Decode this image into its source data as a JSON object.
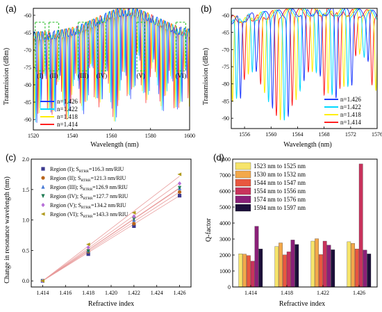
{
  "panels": [
    {
      "label": "(a)",
      "chart_data": {
        "type": "line",
        "xlabel": "Wavelength (nm)",
        "ylabel": "Transmission (dBm)",
        "xlim": [
          1520,
          1600
        ],
        "ylim": [
          -93,
          -58
        ],
        "xticks": [
          1520,
          1540,
          1560,
          1580,
          1600
        ],
        "yticks": [
          -90,
          -85,
          -80,
          -75,
          -70,
          -65,
          -60
        ],
        "legend_position": "bottom-left",
        "series": [
          {
            "name": "n=1.426",
            "color": "#1f3cff"
          },
          {
            "name": "n=1.422",
            "color": "#00d8ff"
          },
          {
            "name": "n=1.418",
            "color": "#ffee00"
          },
          {
            "name": "n=1.414",
            "color": "#ff2020"
          }
        ],
        "regions": [
          {
            "label": "(I)",
            "range": [
              1521,
              1526
            ]
          },
          {
            "label": "(II)",
            "range": [
              1528,
              1533
            ]
          },
          {
            "label": "(III)",
            "range": [
              1543,
              1548
            ]
          },
          {
            "label": "(IV)",
            "range": [
              1553,
              1557
            ]
          },
          {
            "label": "(V)",
            "range": [
              1573,
              1577
            ]
          },
          {
            "label": "(VI)",
            "range": [
              1593,
              1598
            ]
          }
        ]
      }
    },
    {
      "label": "(b)",
      "chart_data": {
        "type": "line",
        "xlabel": "Wavelength (nm)",
        "ylabel": "Transmission (dBm)",
        "xlim": [
          1554,
          1576
        ],
        "ylim": [
          -93,
          -58
        ],
        "xticks": [
          1556,
          1560,
          1564,
          1568,
          1572,
          1576
        ],
        "yticks": [
          -90,
          -85,
          -80,
          -75,
          -70,
          -65,
          -60
        ],
        "legend_position": "bottom-right",
        "series": [
          {
            "name": "n=1.426",
            "color": "#1f3cff"
          },
          {
            "name": "n=1.422",
            "color": "#00d8ff"
          },
          {
            "name": "n=1.418",
            "color": "#ffee00"
          },
          {
            "name": "n=1.414",
            "color": "#ff2020"
          }
        ]
      }
    },
    {
      "label": "(c)",
      "chart_data": {
        "type": "scatter",
        "xlabel": "Refractive index",
        "ylabel": "Change in resonance wavelength (nm)",
        "xlim": [
          1.413,
          1.427
        ],
        "ylim": [
          -0.1,
          2.0
        ],
        "xticks": [
          "1.414",
          "1.416",
          "1.418",
          "1.420",
          "1.422",
          "1.424",
          "1.426"
        ],
        "yticks": [
          "0.0",
          "0.5",
          "1.0",
          "1.5",
          "2.0"
        ],
        "x": [
          1.414,
          1.418,
          1.422,
          1.426
        ],
        "fit_color": "#e89a9a",
        "legend_position": "top-left",
        "series": [
          {
            "name": "Region (I); S",
            "sub": "RTRR",
            "tail": "=116.3 nm/RIU",
            "color": "#3d3a8f",
            "marker": "square",
            "values": [
              0,
              0.44,
              0.9,
              1.4
            ],
            "fit": [
              0,
              1.4
            ]
          },
          {
            "name": "Region (II); S",
            "sub": "RTRR",
            "tail": "=121.3 nm/RIU",
            "color": "#b8651b",
            "marker": "circle",
            "values": [
              0,
              0.48,
              0.94,
              1.46
            ],
            "fit": [
              0,
              1.46
            ]
          },
          {
            "name": "Region (III); S",
            "sub": "RTRR",
            "tail": "=126.9 nm/RIU",
            "color": "#4a7cd6",
            "marker": "triangle-up",
            "values": [
              0,
              0.5,
              1.0,
              1.52
            ],
            "fit": [
              0,
              1.52
            ]
          },
          {
            "name": "Region (IV); S",
            "sub": "RTRR",
            "tail": "=127.7 nm/RIU",
            "color": "#1d7a52",
            "marker": "triangle-down",
            "values": [
              0,
              0.49,
              1.02,
              1.53
            ],
            "fit": [
              0,
              1.53
            ]
          },
          {
            "name": "Region (V); S",
            "sub": "RTRR",
            "tail": "=134.2 nm/RIU",
            "color": "#b76fd8",
            "marker": "diamond",
            "values": [
              0,
              0.55,
              1.06,
              1.6
            ],
            "fit": [
              0,
              1.61
            ]
          },
          {
            "name": "Region (VI); S",
            "sub": "RTRR",
            "tail": "=143.3 nm/RIU",
            "color": "#b09a1b",
            "marker": "triangle-left",
            "values": [
              0,
              0.6,
              1.12,
              1.75
            ],
            "fit": [
              0,
              1.72
            ]
          }
        ]
      }
    },
    {
      "label": "(d)",
      "chart_data": {
        "type": "bar",
        "xlabel": "Refractive index",
        "ylabel": "Q-factor",
        "ylim": [
          0,
          8000
        ],
        "yticks": [
          0,
          1000,
          2000,
          3000,
          4000,
          5000,
          6000,
          7000,
          8000
        ],
        "categories": [
          "1.414",
          "1.418",
          "1.422",
          "1.426"
        ],
        "legend_position": "top-left",
        "series": [
          {
            "name": "1523 nm to 1525 nm",
            "color": "#f6e46a",
            "values": [
              2080,
              2530,
              2870,
              2830
            ]
          },
          {
            "name": "1530 nm to 1532 nm",
            "color": "#f3a84a",
            "values": [
              2060,
              2760,
              3020,
              2730
            ]
          },
          {
            "name": "1544 nm to 1547 nm",
            "color": "#e9573f",
            "values": [
              1970,
              2010,
              2030,
              2380
            ]
          },
          {
            "name": "1554 nm to 1556 nm",
            "color": "#c8335c",
            "values": [
              1620,
              2200,
              2870,
              7700
            ]
          },
          {
            "name": "1574 nm to 1576 nm",
            "color": "#8a2078",
            "values": [
              3800,
              2940,
              2620,
              2310
            ]
          },
          {
            "name": "1594 nm to 1597 nm",
            "color": "#1c0f3a",
            "values": [
              2380,
              2660,
              2330,
              2070
            ]
          }
        ]
      }
    }
  ]
}
